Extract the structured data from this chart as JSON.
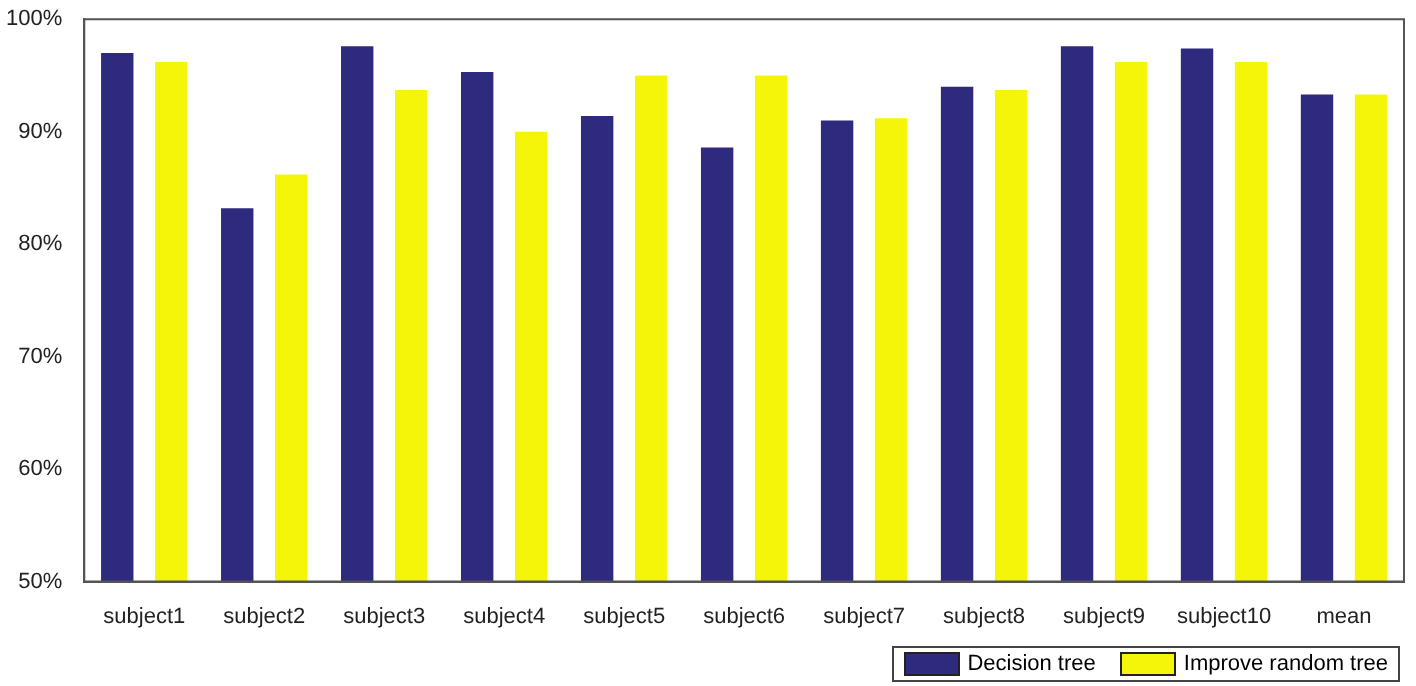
{
  "chart_data": {
    "type": "bar",
    "categories": [
      "subject1",
      "subject2",
      "subject3",
      "subject4",
      "subject5",
      "subject6",
      "subject7",
      "subject8",
      "subject9",
      "subject10",
      "mean"
    ],
    "series": [
      {
        "name": "Decision tree",
        "color": "#2e2a7e",
        "values": [
          97.0,
          83.2,
          97.6,
          95.3,
          91.4,
          88.6,
          91.0,
          94.0,
          97.6,
          97.4,
          93.3
        ]
      },
      {
        "name": "Improve random tree",
        "color": "#f5f50a",
        "values": [
          96.2,
          86.2,
          93.7,
          90.0,
          95.0,
          95.0,
          91.2,
          93.7,
          96.2,
          96.2,
          93.3
        ]
      }
    ],
    "ylim": [
      50,
      100
    ],
    "yticks": [
      {
        "value": 50,
        "label": "50%"
      },
      {
        "value": 60,
        "label": "60%"
      },
      {
        "value": 70,
        "label": "70%"
      },
      {
        "value": 80,
        "label": "80%"
      },
      {
        "value": 90,
        "label": "90%"
      },
      {
        "value": 100,
        "label": "100%"
      }
    ],
    "grid": false,
    "legend": "bottom right"
  }
}
